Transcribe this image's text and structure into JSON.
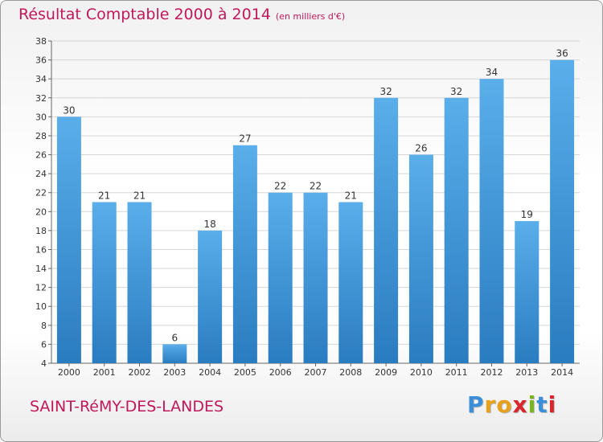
{
  "header": {
    "title": "Résultat Comptable 2000 à 2014",
    "subtitle": "(en milliers d'€)"
  },
  "footer": {
    "commune": "SAINT-RéMY-DES-LANDES",
    "logo_letters": [
      "P",
      "r",
      "o",
      "x",
      "i",
      "t",
      "i"
    ],
    "logo_colors": [
      "#3a8fd8",
      "#e8a11a",
      "#e8a11a",
      "#d8262d",
      "#7ab51d",
      "#3a8fd8",
      "#d8262d"
    ]
  },
  "chart_data": {
    "type": "bar",
    "categories": [
      "2000",
      "2001",
      "2002",
      "2003",
      "2004",
      "2005",
      "2006",
      "2007",
      "2008",
      "2009",
      "2010",
      "2011",
      "2012",
      "2013",
      "2014"
    ],
    "values": [
      30,
      21,
      21,
      6,
      18,
      27,
      22,
      22,
      21,
      32,
      26,
      32,
      34,
      19,
      36
    ],
    "title": "Résultat Comptable 2000 à 2014",
    "xlabel": "",
    "ylabel": "",
    "ylim": [
      4,
      38
    ],
    "yticks": [
      4,
      6,
      8,
      10,
      12,
      14,
      16,
      18,
      20,
      22,
      24,
      26,
      28,
      30,
      32,
      34,
      36,
      38
    ],
    "grid": true,
    "bar_color_top": "#5aaeea",
    "bar_color_bottom": "#2a7cc0"
  }
}
